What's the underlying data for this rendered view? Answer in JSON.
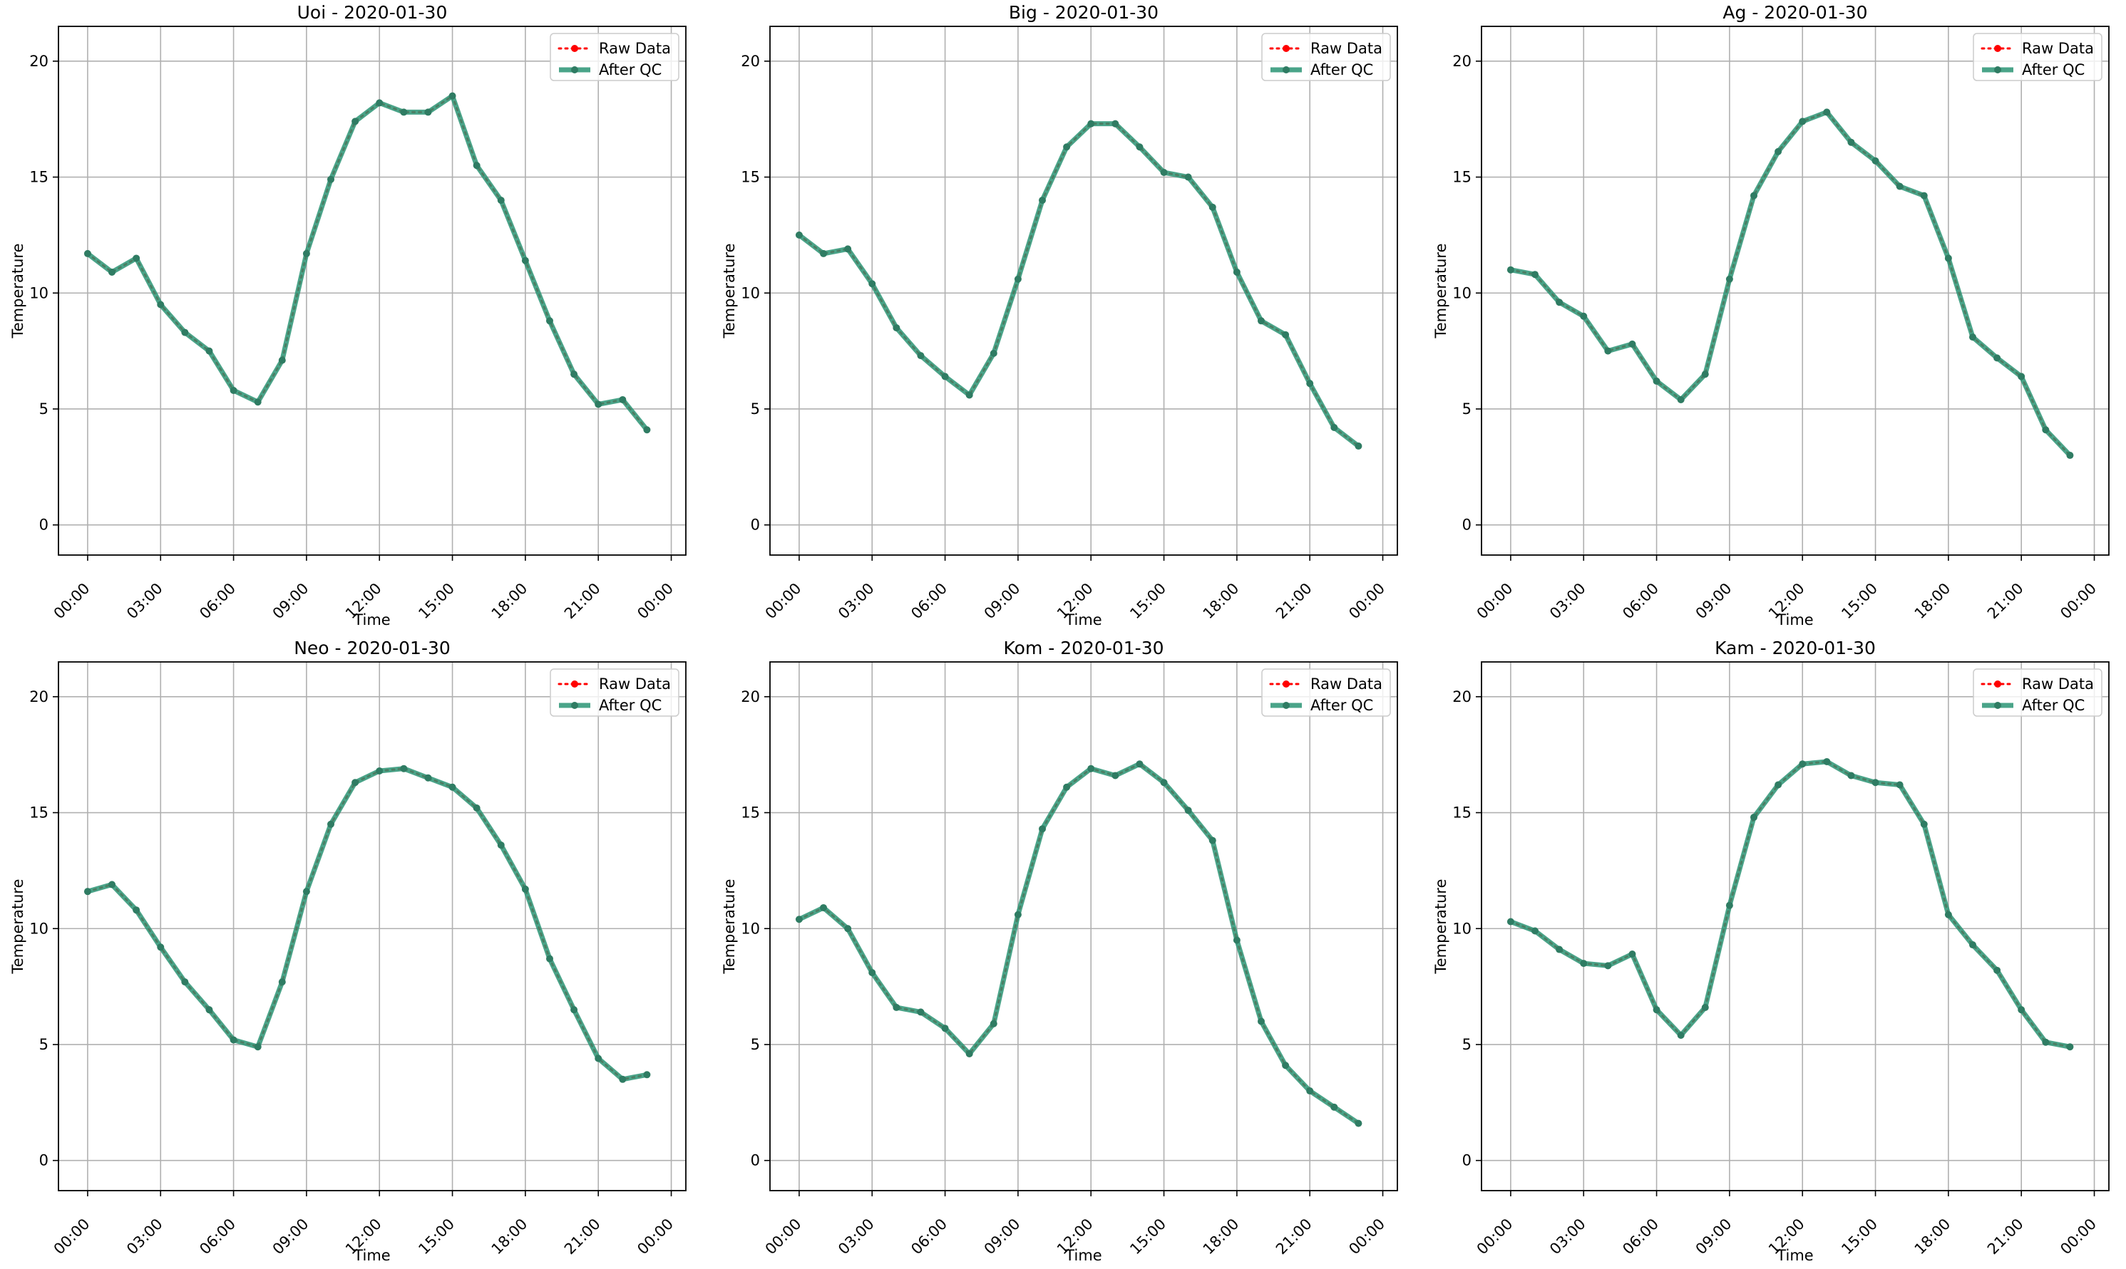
{
  "figure": {
    "background": "#ffffff"
  },
  "colors": {
    "raw": "#ff0000",
    "qc": "#2a9474",
    "grid": "#b0b0b0",
    "axis": "#000000"
  },
  "chart_data": [
    {
      "type": "line",
      "title": "Uoi - 2020-01-30",
      "xlabel": "Time",
      "ylabel": "Temperature",
      "x": [
        "00:00",
        "01:00",
        "02:00",
        "03:00",
        "04:00",
        "05:00",
        "06:00",
        "07:00",
        "08:00",
        "09:00",
        "10:00",
        "11:00",
        "12:00",
        "13:00",
        "14:00",
        "15:00",
        "16:00",
        "17:00",
        "18:00",
        "19:00",
        "20:00",
        "21:00",
        "22:00",
        "23:00"
      ],
      "xticks": [
        "00:00",
        "03:00",
        "06:00",
        "09:00",
        "12:00",
        "15:00",
        "18:00",
        "21:00",
        "00:00"
      ],
      "yticks": [
        0,
        5,
        10,
        15,
        20
      ],
      "ylim": [
        -1.3,
        21.5
      ],
      "grid": true,
      "legend": "top-right",
      "series": [
        {
          "name": "Raw Data",
          "values": [
            11.7,
            10.9,
            11.5,
            9.5,
            8.3,
            7.5,
            5.8,
            5.3,
            7.1,
            11.7,
            14.9,
            17.4,
            18.2,
            17.8,
            17.8,
            18.5,
            15.5,
            14.0,
            11.4,
            8.8,
            6.5,
            5.2,
            5.4,
            4.1
          ]
        },
        {
          "name": "After QC",
          "values": [
            11.7,
            10.9,
            11.5,
            9.5,
            8.3,
            7.5,
            5.8,
            5.3,
            7.1,
            11.7,
            14.9,
            17.4,
            18.2,
            17.8,
            17.8,
            18.5,
            15.5,
            14.0,
            11.4,
            8.8,
            6.5,
            5.2,
            5.4,
            4.1
          ]
        }
      ]
    },
    {
      "type": "line",
      "title": "Big - 2020-01-30",
      "xlabel": "Time",
      "ylabel": "Temperature",
      "x": [
        "00:00",
        "01:00",
        "02:00",
        "03:00",
        "04:00",
        "05:00",
        "06:00",
        "07:00",
        "08:00",
        "09:00",
        "10:00",
        "11:00",
        "12:00",
        "13:00",
        "14:00",
        "15:00",
        "16:00",
        "17:00",
        "18:00",
        "19:00",
        "20:00",
        "21:00",
        "22:00",
        "23:00"
      ],
      "xticks": [
        "00:00",
        "03:00",
        "06:00",
        "09:00",
        "12:00",
        "15:00",
        "18:00",
        "21:00",
        "00:00"
      ],
      "yticks": [
        0,
        5,
        10,
        15,
        20
      ],
      "ylim": [
        -1.3,
        21.5
      ],
      "grid": true,
      "legend": "top-right",
      "series": [
        {
          "name": "Raw Data",
          "values": [
            12.5,
            11.7,
            11.9,
            10.4,
            8.5,
            7.3,
            6.4,
            5.6,
            7.4,
            10.6,
            14.0,
            16.3,
            17.3,
            17.3,
            16.3,
            15.2,
            15.0,
            13.7,
            10.9,
            8.8,
            8.2,
            6.1,
            4.2,
            3.4
          ]
        },
        {
          "name": "After QC",
          "values": [
            12.5,
            11.7,
            11.9,
            10.4,
            8.5,
            7.3,
            6.4,
            5.6,
            7.4,
            10.6,
            14.0,
            16.3,
            17.3,
            17.3,
            16.3,
            15.2,
            15.0,
            13.7,
            10.9,
            8.8,
            8.2,
            6.1,
            4.2,
            3.4
          ]
        }
      ]
    },
    {
      "type": "line",
      "title": "Ag - 2020-01-30",
      "xlabel": "Time",
      "ylabel": "Temperature",
      "x": [
        "00:00",
        "01:00",
        "02:00",
        "03:00",
        "04:00",
        "05:00",
        "06:00",
        "07:00",
        "08:00",
        "09:00",
        "10:00",
        "11:00",
        "12:00",
        "13:00",
        "14:00",
        "15:00",
        "16:00",
        "17:00",
        "18:00",
        "19:00",
        "20:00",
        "21:00",
        "22:00",
        "23:00"
      ],
      "xticks": [
        "00:00",
        "03:00",
        "06:00",
        "09:00",
        "12:00",
        "15:00",
        "18:00",
        "21:00",
        "00:00"
      ],
      "yticks": [
        0,
        5,
        10,
        15,
        20
      ],
      "ylim": [
        -1.3,
        21.5
      ],
      "grid": true,
      "legend": "top-right",
      "series": [
        {
          "name": "Raw Data",
          "values": [
            11.0,
            10.8,
            9.6,
            9.0,
            7.5,
            7.8,
            6.2,
            5.4,
            6.5,
            10.6,
            14.2,
            16.1,
            17.4,
            17.8,
            16.5,
            15.7,
            14.6,
            14.2,
            11.5,
            8.1,
            7.2,
            6.4,
            4.1,
            3.0
          ]
        },
        {
          "name": "After QC",
          "values": [
            11.0,
            10.8,
            9.6,
            9.0,
            7.5,
            7.8,
            6.2,
            5.4,
            6.5,
            10.6,
            14.2,
            16.1,
            17.4,
            17.8,
            16.5,
            15.7,
            14.6,
            14.2,
            11.5,
            8.1,
            7.2,
            6.4,
            4.1,
            3.0
          ]
        }
      ]
    },
    {
      "type": "line",
      "title": "Neo - 2020-01-30",
      "xlabel": "Time",
      "ylabel": "Temperature",
      "x": [
        "00:00",
        "01:00",
        "02:00",
        "03:00",
        "04:00",
        "05:00",
        "06:00",
        "07:00",
        "08:00",
        "09:00",
        "10:00",
        "11:00",
        "12:00",
        "13:00",
        "14:00",
        "15:00",
        "16:00",
        "17:00",
        "18:00",
        "19:00",
        "20:00",
        "21:00",
        "22:00",
        "23:00"
      ],
      "xticks": [
        "00:00",
        "03:00",
        "06:00",
        "09:00",
        "12:00",
        "15:00",
        "18:00",
        "21:00",
        "00:00"
      ],
      "yticks": [
        0,
        5,
        10,
        15,
        20
      ],
      "ylim": [
        -1.3,
        21.5
      ],
      "grid": true,
      "legend": "top-right",
      "series": [
        {
          "name": "Raw Data",
          "values": [
            11.6,
            11.9,
            10.8,
            9.2,
            7.7,
            6.5,
            5.2,
            4.9,
            7.7,
            11.6,
            14.5,
            16.3,
            16.8,
            16.9,
            16.5,
            16.1,
            15.2,
            13.6,
            11.7,
            8.7,
            6.5,
            4.4,
            3.5,
            3.7
          ]
        },
        {
          "name": "After QC",
          "values": [
            11.6,
            11.9,
            10.8,
            9.2,
            7.7,
            6.5,
            5.2,
            4.9,
            7.7,
            11.6,
            14.5,
            16.3,
            16.8,
            16.9,
            16.5,
            16.1,
            15.2,
            13.6,
            11.7,
            8.7,
            6.5,
            4.4,
            3.5,
            3.7
          ]
        }
      ]
    },
    {
      "type": "line",
      "title": "Kom - 2020-01-30",
      "xlabel": "Time",
      "ylabel": "Temperature",
      "x": [
        "00:00",
        "01:00",
        "02:00",
        "03:00",
        "04:00",
        "05:00",
        "06:00",
        "07:00",
        "08:00",
        "09:00",
        "10:00",
        "11:00",
        "12:00",
        "13:00",
        "14:00",
        "15:00",
        "16:00",
        "17:00",
        "18:00",
        "19:00",
        "20:00",
        "21:00",
        "22:00",
        "23:00"
      ],
      "xticks": [
        "00:00",
        "03:00",
        "06:00",
        "09:00",
        "12:00",
        "15:00",
        "18:00",
        "21:00",
        "00:00"
      ],
      "yticks": [
        0,
        5,
        10,
        15,
        20
      ],
      "ylim": [
        -1.3,
        21.5
      ],
      "grid": true,
      "legend": "top-right",
      "series": [
        {
          "name": "Raw Data",
          "values": [
            10.4,
            10.9,
            10.0,
            8.1,
            6.6,
            6.4,
            5.7,
            4.6,
            5.9,
            10.6,
            14.3,
            16.1,
            16.9,
            16.6,
            17.1,
            16.3,
            15.1,
            13.8,
            9.5,
            6.0,
            4.1,
            3.0,
            2.3,
            1.6
          ]
        },
        {
          "name": "After QC",
          "values": [
            10.4,
            10.9,
            10.0,
            8.1,
            6.6,
            6.4,
            5.7,
            4.6,
            5.9,
            10.6,
            14.3,
            16.1,
            16.9,
            16.6,
            17.1,
            16.3,
            15.1,
            13.8,
            9.5,
            6.0,
            4.1,
            3.0,
            2.3,
            1.6
          ]
        }
      ]
    },
    {
      "type": "line",
      "title": "Kam - 2020-01-30",
      "xlabel": "Time",
      "ylabel": "Temperature",
      "x": [
        "00:00",
        "01:00",
        "02:00",
        "03:00",
        "04:00",
        "05:00",
        "06:00",
        "07:00",
        "08:00",
        "09:00",
        "10:00",
        "11:00",
        "12:00",
        "13:00",
        "14:00",
        "15:00",
        "16:00",
        "17:00",
        "18:00",
        "19:00",
        "20:00",
        "21:00",
        "22:00",
        "23:00"
      ],
      "xticks": [
        "00:00",
        "03:00",
        "06:00",
        "09:00",
        "12:00",
        "15:00",
        "18:00",
        "21:00",
        "00:00"
      ],
      "yticks": [
        0,
        5,
        10,
        15,
        20
      ],
      "ylim": [
        -1.3,
        21.5
      ],
      "grid": true,
      "legend": "top-right",
      "series": [
        {
          "name": "Raw Data",
          "values": [
            10.3,
            9.9,
            9.1,
            8.5,
            8.4,
            8.9,
            6.5,
            5.4,
            6.6,
            11.0,
            14.8,
            16.2,
            17.1,
            17.2,
            16.6,
            16.3,
            16.2,
            14.5,
            10.6,
            9.3,
            8.2,
            6.5,
            5.1,
            4.9
          ]
        },
        {
          "name": "After QC",
          "values": [
            10.3,
            9.9,
            9.1,
            8.5,
            8.4,
            8.9,
            6.5,
            5.4,
            6.6,
            11.0,
            14.8,
            16.2,
            17.1,
            17.2,
            16.6,
            16.3,
            16.2,
            14.5,
            10.6,
            9.3,
            8.2,
            6.5,
            5.1,
            4.9
          ]
        }
      ]
    }
  ]
}
